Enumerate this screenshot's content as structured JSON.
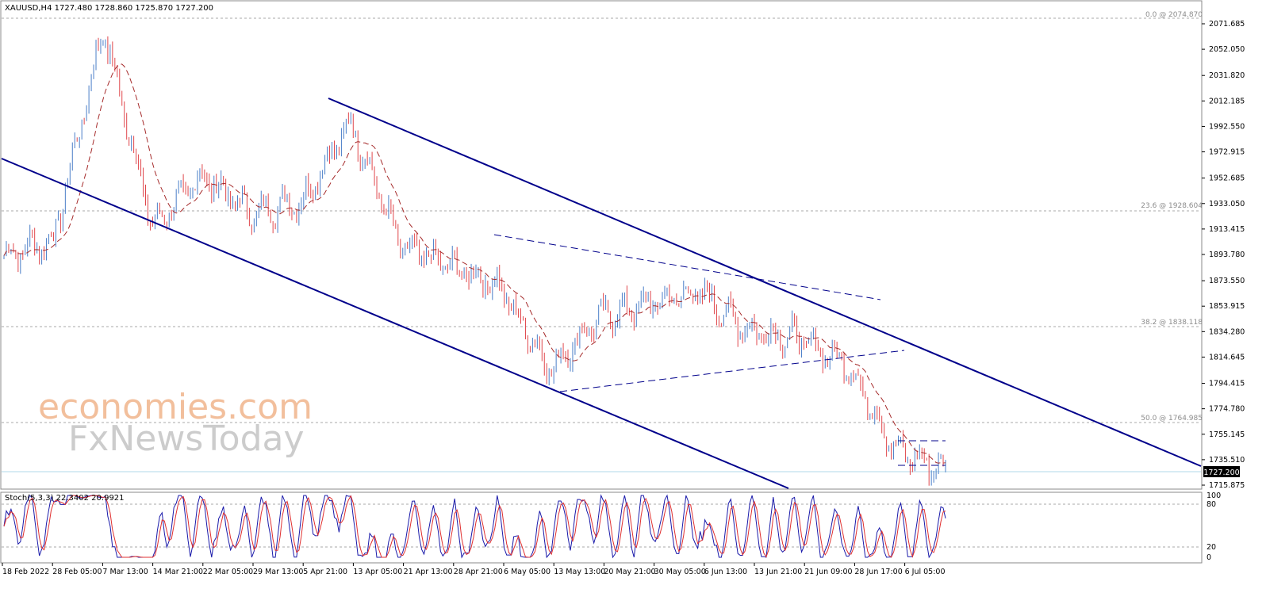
{
  "header": {
    "symbol_ohlc": "XAUUSD,H4  1727.480 1728.860 1725.870 1727.200",
    "stoch_label": "Stoch(5,3,3) 22.3402 20.9921"
  },
  "price_axis": {
    "ticks": [
      "2071.685",
      "2052.050",
      "2031.820",
      "2012.185",
      "1992.550",
      "1972.915",
      "1952.685",
      "1933.050",
      "1913.415",
      "1893.780",
      "1873.550",
      "1853.915",
      "1834.280",
      "1814.645",
      "1794.415",
      "1774.780",
      "1755.145",
      "1735.510",
      "1715.875"
    ],
    "current_price": "1727.200"
  },
  "stoch_axis": {
    "ticks": [
      "100",
      "80",
      "20",
      "0"
    ]
  },
  "time_axis": {
    "labels": [
      "18 Feb 2022",
      "28 Feb 05:00",
      "7 Mar 13:00",
      "14 Mar 21:00",
      "22 Mar 05:00",
      "29 Mar 13:00",
      "5 Apr 21:00",
      "13 Apr 05:00",
      "21 Apr 13:00",
      "28 Apr 21:00",
      "6 May 05:00",
      "13 May 13:00",
      "20 May 21:00",
      "30 May 05:00",
      "6 Jun 13:00",
      "13 Jun 21:00",
      "21 Jun 09:00",
      "28 Jun 17:00",
      "6 Jul 05:00"
    ]
  },
  "fibonacci": [
    "0.0 @ 2074.870",
    "23.6 @ 1928.604",
    "38.2 @ 1838.118",
    "50.0 @ 1764.985"
  ],
  "watermark": {
    "line1": "economies.com",
    "line2": "FxNewsToday"
  },
  "colors": {
    "bull": "#4a7ec8",
    "bear": "#e0474c",
    "trendline": "#00008b",
    "ma": "#a52a2a",
    "level": "#a9a9a9",
    "stoch_main": "#1a1aaa",
    "stoch_signal": "#e03030",
    "watermark_orange": "#f2bf9c",
    "watermark_gray": "#cccccc"
  },
  "chart_data": {
    "type": "candlestick",
    "symbol": "XAUUSD",
    "timeframe": "H4",
    "last": {
      "open": 1727.48,
      "high": 1728.86,
      "low": 1725.87,
      "close": 1727.2
    },
    "ylim": [
      1712,
      2080
    ],
    "path_anchors": [
      [
        "18 Feb 2022",
        1893
      ],
      [
        "28 Feb 05:00",
        1905
      ],
      [
        "7 Mar 13:00",
        2068
      ],
      [
        "14 Mar 21:00",
        1915
      ],
      [
        "22 Mar 05:00",
        1955
      ],
      [
        "29 Mar 13:00",
        1925
      ],
      [
        "5 Apr 21:00",
        1935
      ],
      [
        "13 Apr 05:00",
        1995
      ],
      [
        "21 Apr 13:00",
        1900
      ],
      [
        "28 Apr 21:00",
        1885
      ],
      [
        "6 May 05:00",
        1870
      ],
      [
        "13 May 13:00",
        1805
      ],
      [
        "20 May 21:00",
        1845
      ],
      [
        "30 May 05:00",
        1855
      ],
      [
        "6 Jun 13:00",
        1865
      ],
      [
        "13 Jun 21:00",
        1835
      ],
      [
        "21 Jun 09:00",
        1830
      ],
      [
        "28 Jun 17:00",
        1810
      ],
      [
        "6 Jul 05:00",
        1742
      ],
      [
        "last",
        1727.2
      ]
    ]
  }
}
